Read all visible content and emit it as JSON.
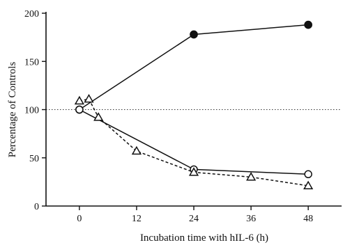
{
  "chart_data": {
    "type": "line",
    "title": "",
    "xlabel": "Incubation time with hIL-6 (h)",
    "ylabel": "Percentage of Controls",
    "xlim": [
      -7,
      55
    ],
    "ylim": [
      0,
      200
    ],
    "x_ticks": [
      0,
      12,
      24,
      36,
      48
    ],
    "y_ticks": [
      0,
      50,
      100,
      150,
      200
    ],
    "reference_line": {
      "y": 100,
      "style": "dotted"
    },
    "grid": false,
    "legend": "none",
    "series": [
      {
        "marker": "filled-circle",
        "line": "solid",
        "x": [
          0,
          24,
          48
        ],
        "y": [
          100,
          178,
          188
        ]
      },
      {
        "marker": "open-circle",
        "line": "solid",
        "x": [
          0,
          24,
          48
        ],
        "y": [
          100,
          38,
          33
        ]
      },
      {
        "marker": "open-triangle",
        "line": "dashed",
        "x": [
          0,
          2,
          4,
          12,
          24,
          36,
          48
        ],
        "y": [
          109,
          111,
          92,
          57,
          35,
          30,
          21
        ]
      }
    ]
  }
}
